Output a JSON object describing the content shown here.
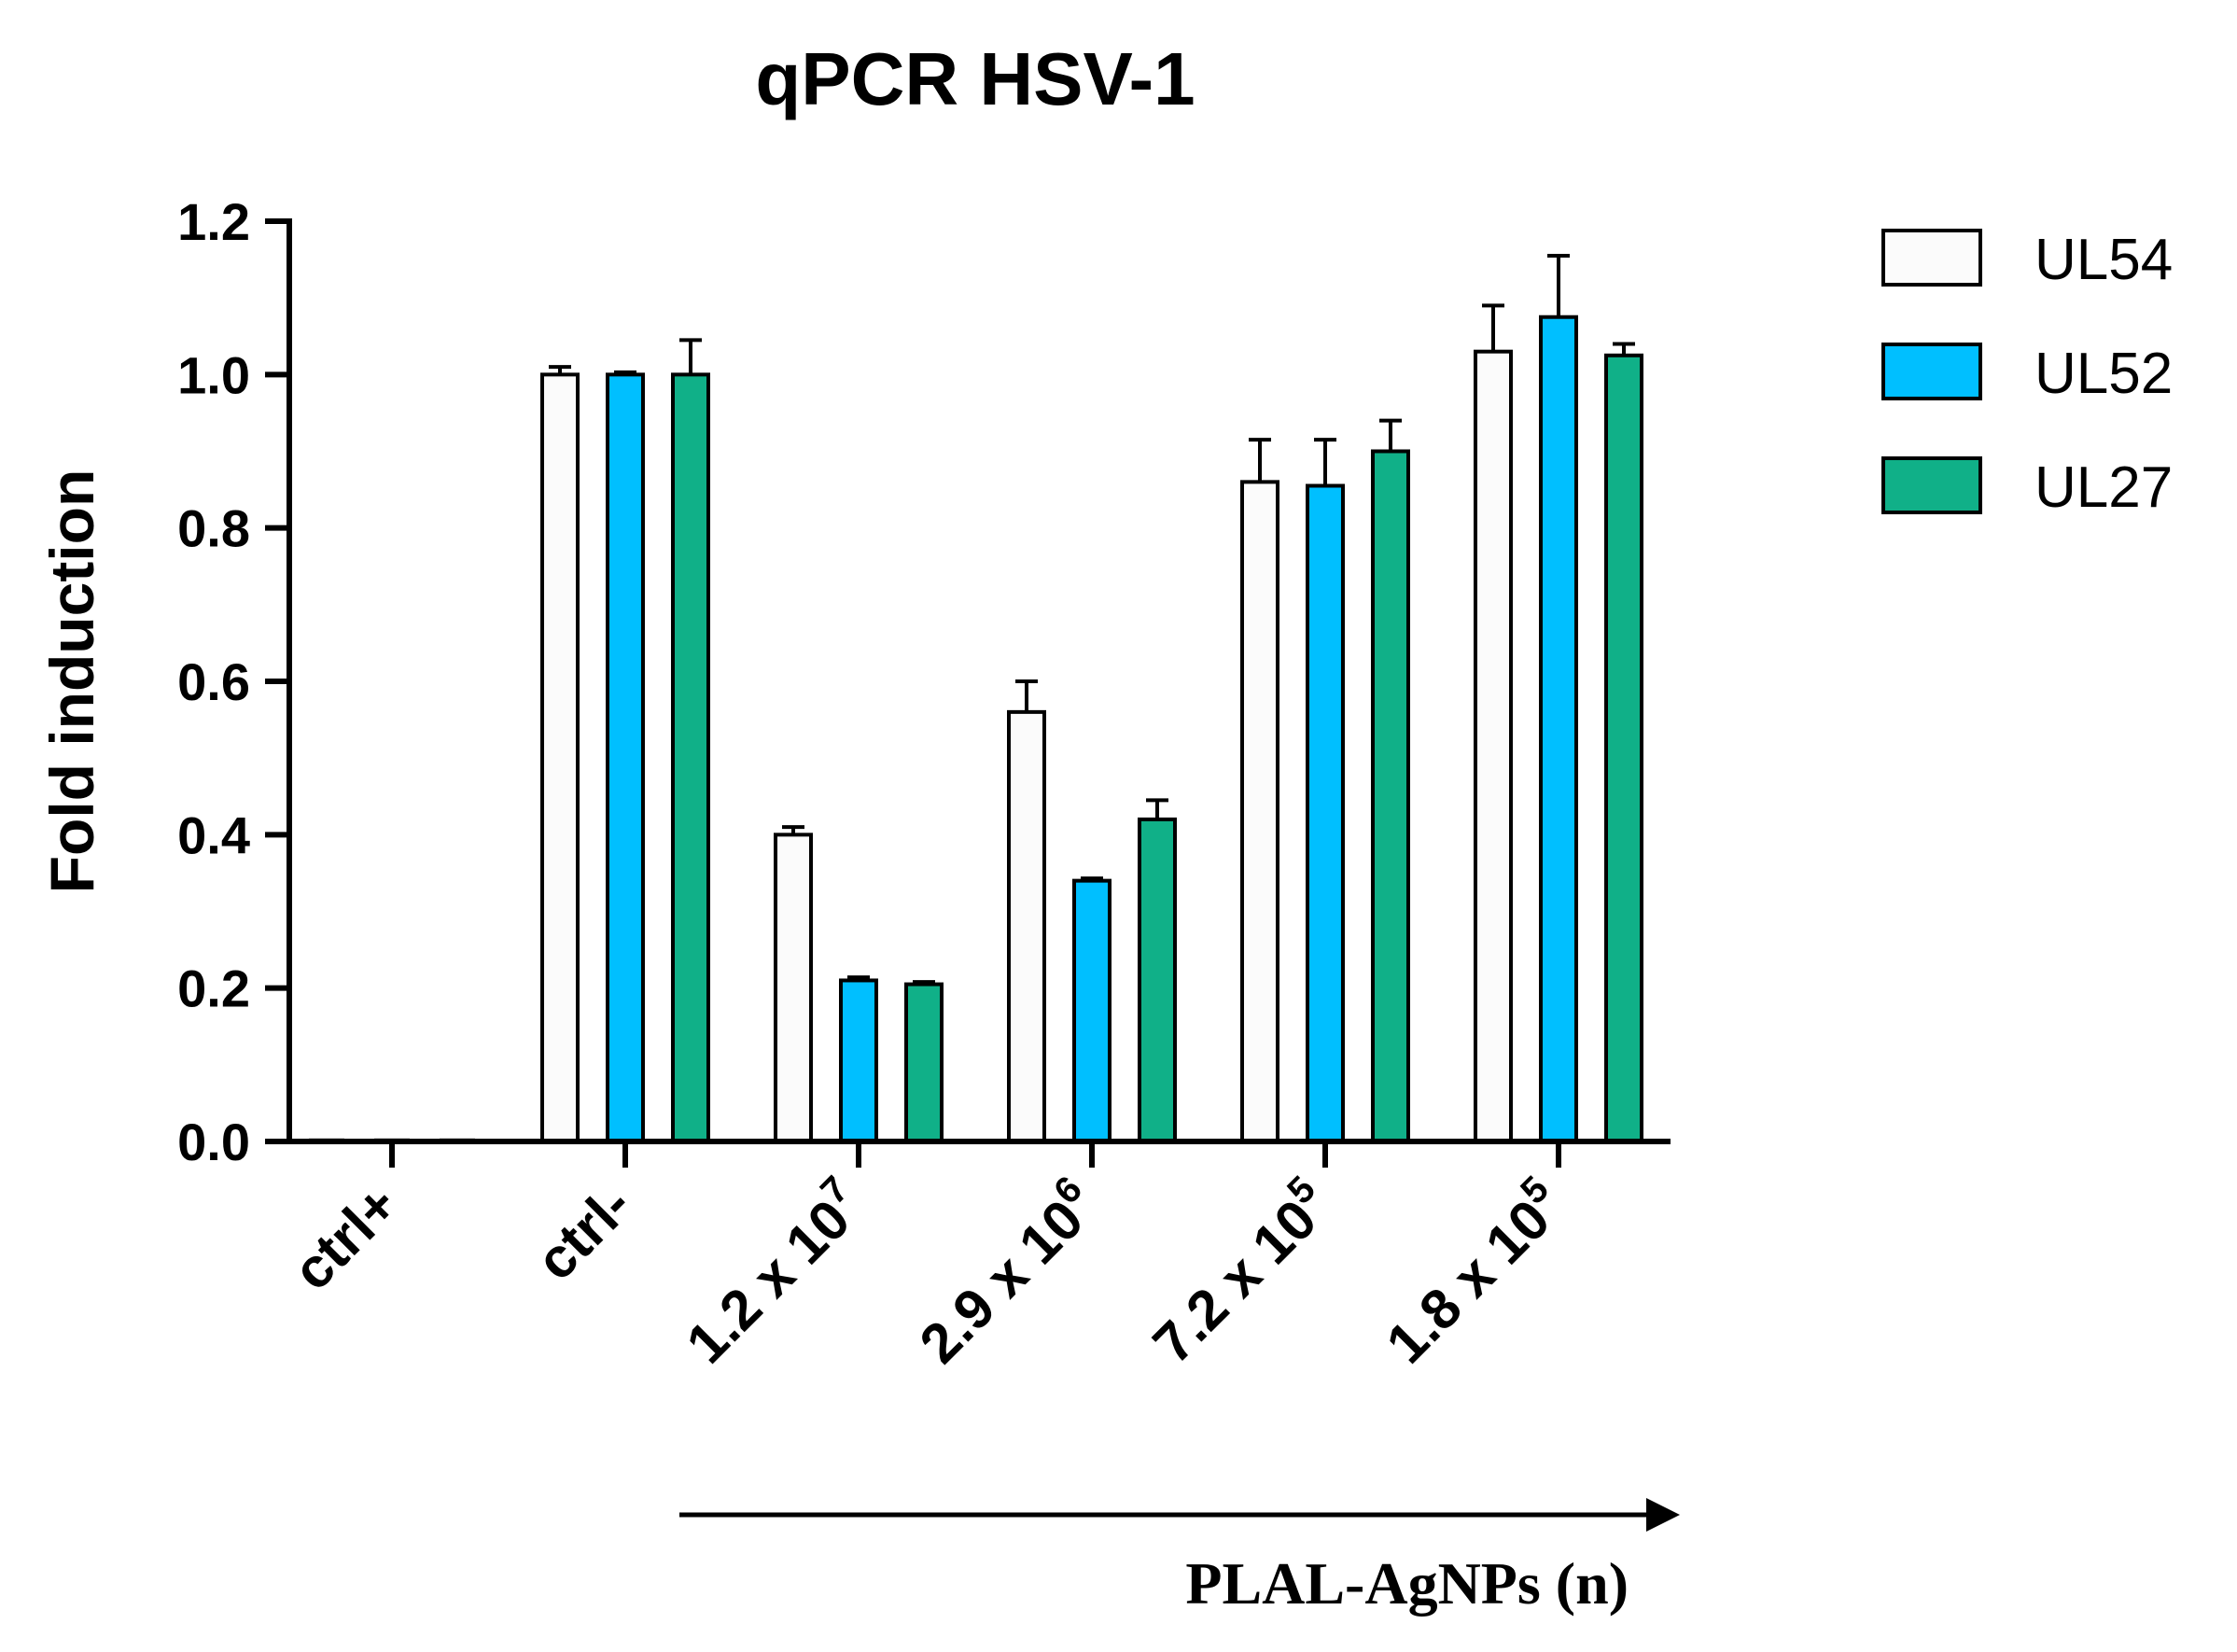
{
  "chart_data": {
    "type": "bar",
    "title": "qPCR HSV-1",
    "ylabel": "Fold induction",
    "xlabel": "",
    "ylim": [
      0,
      1.2
    ],
    "yticks": [
      "0.0",
      "0.2",
      "0.4",
      "0.6",
      "0.8",
      "1.0",
      "1.2"
    ],
    "categories": [
      {
        "id": "ctrl_pos",
        "label": "ctrl+",
        "sup": ""
      },
      {
        "id": "ctrl_neg",
        "label": "ctrl-",
        "sup": ""
      },
      {
        "id": "c1",
        "label": "1.2 x 10",
        "sup": "7"
      },
      {
        "id": "c2",
        "label": "2.9 x 10",
        "sup": "6"
      },
      {
        "id": "c3",
        "label": "7.2 x 10",
        "sup": "5"
      },
      {
        "id": "c4",
        "label": "1.8 x 10",
        "sup": "5"
      }
    ],
    "series": [
      {
        "name": "UL54",
        "color": "#fbfbfb",
        "values": [
          0.0,
          1.0,
          0.4,
          0.56,
          0.86,
          1.03
        ],
        "errors": [
          0.0,
          0.01,
          0.01,
          0.04,
          0.055,
          0.06
        ]
      },
      {
        "name": "UL52",
        "color": "#00bfff",
        "values": [
          0.0,
          1.0,
          0.21,
          0.34,
          0.855,
          1.075
        ],
        "errors": [
          0.0,
          0.003,
          0.004,
          0.003,
          0.06,
          0.08
        ]
      },
      {
        "name": "UL27",
        "color": "#10b088",
        "values": [
          0.0,
          1.0,
          0.205,
          0.42,
          0.9,
          1.025
        ],
        "errors": [
          0.0,
          0.045,
          0.003,
          0.025,
          0.04,
          0.015
        ]
      }
    ],
    "legend_position": "top-right",
    "annotation": {
      "text": "PLAL-AgNPs (n)",
      "type": "arrow",
      "spans_categories": [
        "1.2 x 10^7",
        "1.8 x 10^5"
      ]
    }
  }
}
